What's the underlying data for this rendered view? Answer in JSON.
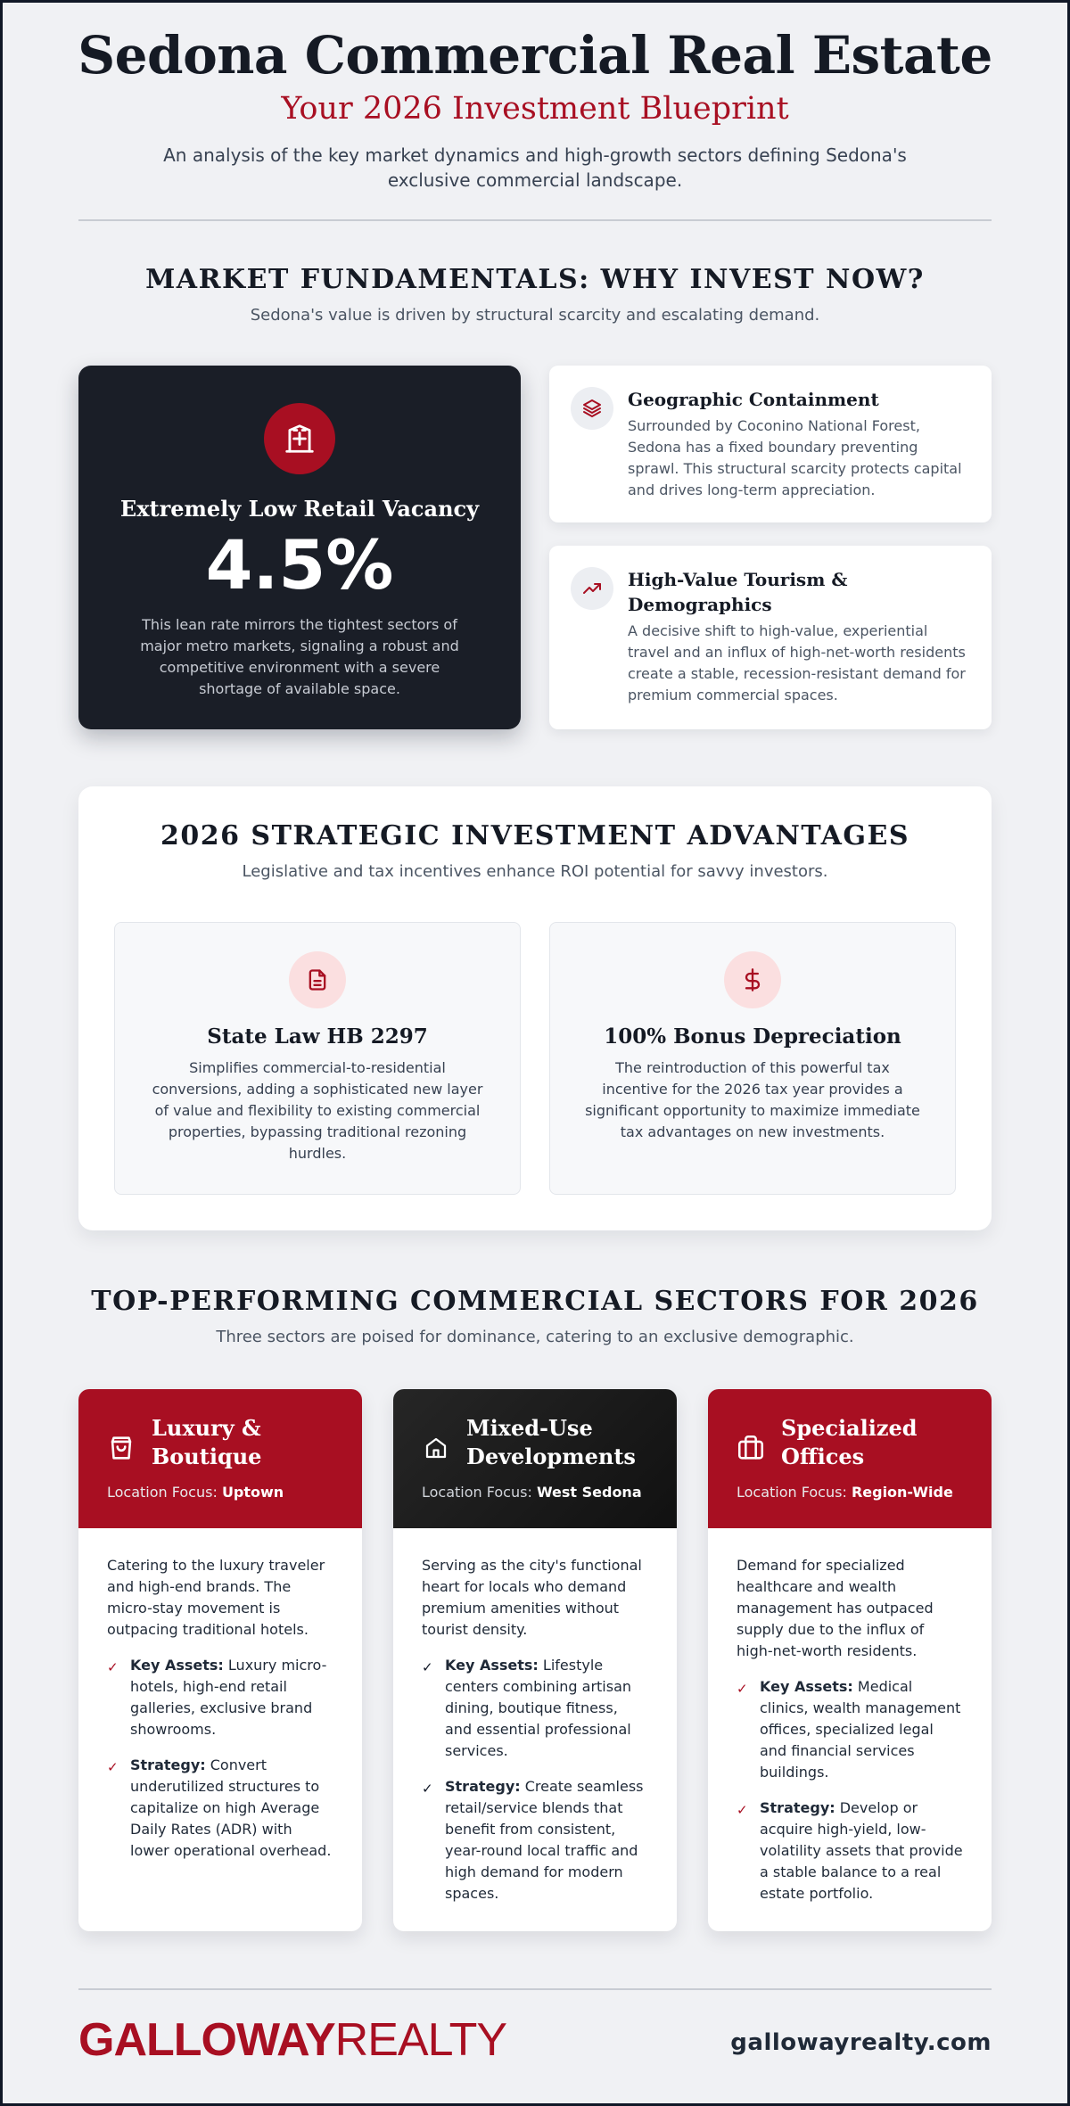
{
  "header": {
    "title": "Sedona Commercial Real Estate",
    "subtitle": "Your 2026 Investment Blueprint",
    "description": "An analysis of the key market dynamics and high-growth sectors defining Sedona's exclusive commercial landscape."
  },
  "fundamentals": {
    "title": "MARKET FUNDAMENTALS: WHY INVEST NOW?",
    "subtitle": "Sedona's value is driven by structural scarcity and escalating demand.",
    "vacancy": {
      "icon": "building-icon",
      "title": "Extremely Low Retail Vacancy",
      "value": "4.5%",
      "description": "This lean rate mirrors the tightest sectors of major metro markets, signaling a robust and competitive environment with a severe shortage of available space."
    },
    "facts": [
      {
        "icon": "layers-icon",
        "title": "Geographic Containment",
        "description": "Surrounded by Coconino National Forest, Sedona has a fixed boundary preventing sprawl. This structural scarcity protects capital and drives long-term appreciation."
      },
      {
        "icon": "trending-up-icon",
        "title": "High-Value Tourism & Demographics",
        "description": "A decisive shift to high-value, experiential travel and an influx of high-net-worth residents create a stable, recession-resistant demand for premium commercial spaces."
      }
    ]
  },
  "advantages": {
    "title": "2026 STRATEGIC INVESTMENT ADVANTAGES",
    "subtitle": "Legislative and tax incentives enhance ROI potential for savvy investors.",
    "items": [
      {
        "icon": "document-icon",
        "title": "State Law HB 2297",
        "description": "Simplifies commercial-to-residential conversions, adding a sophisticated new layer of value and flexibility to existing commercial properties, bypassing traditional rezoning hurdles."
      },
      {
        "icon": "dollar-icon",
        "title": "100% Bonus Depreciation",
        "description": "The reintroduction of this powerful tax incentive for the 2026 tax year provides a significant opportunity to maximize immediate tax advantages on new investments."
      }
    ]
  },
  "sectors": {
    "title": "TOP-PERFORMING COMMERCIAL SECTORS FOR 2026",
    "subtitle": "Three sectors are poised for dominance, catering to an exclusive demographic.",
    "location_label": "Location Focus:",
    "key_assets_label": "Key Assets:",
    "strategy_label": "Strategy:",
    "items": [
      {
        "icon": "shopping-bag-icon",
        "name": "Luxury & Boutique",
        "location": "Uptown",
        "intro": "Catering to the luxury traveler and high-end brands. The micro-stay movement is outpacing traditional hotels.",
        "key_assets": "Luxury micro-hotels, high-end retail galleries, exclusive brand showrooms.",
        "strategy": "Convert underutilized structures to capitalize on high Average Daily Rates (ADR) with lower operational overhead."
      },
      {
        "icon": "home-icon",
        "name": "Mixed-Use Developments",
        "location": "West Sedona",
        "intro": "Serving as the city's functional heart for locals who demand premium amenities without tourist density.",
        "key_assets": "Lifestyle centers combining artisan dining, boutique fitness, and essential professional services.",
        "strategy": "Create seamless retail/service blends that benefit from consistent, year-round local traffic and high demand for modern spaces."
      },
      {
        "icon": "briefcase-icon",
        "name": "Specialized Offices",
        "location": "Region-Wide",
        "intro": "Demand for specialized healthcare and wealth management has outpaced supply due to the influx of high-net-worth residents.",
        "key_assets": "Medical clinics, wealth management offices, specialized legal and financial services buildings.",
        "strategy": "Develop or acquire high-yield, low-volatility assets that provide a stable balance to a real estate portfolio."
      }
    ]
  },
  "footer": {
    "logo_bold": "GALLOWAY",
    "logo_light": "REALTY",
    "url": "gallowayrealty.com"
  },
  "colors": {
    "accent": "#a80f22",
    "dark": "#1a1e27",
    "background": "#f0f1f4"
  }
}
